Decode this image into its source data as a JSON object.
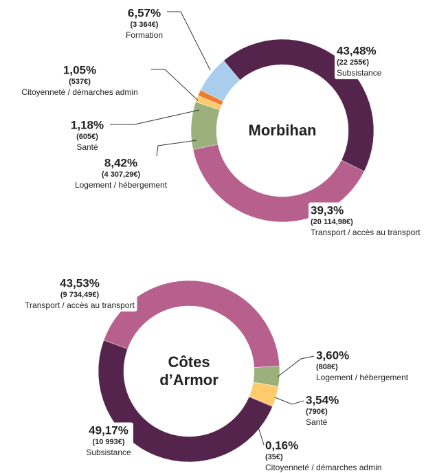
{
  "chart_data": [
    {
      "type": "pie",
      "title": "Morbihan",
      "categories": [
        "Subsistance",
        "Transport / accès au transport",
        "Logement / hébergement",
        "Santé",
        "Citoyenneté / démarches admin",
        "Formation"
      ],
      "values": [
        43.48,
        39.3,
        8.42,
        1.18,
        1.05,
        6.57
      ],
      "value_labels": [
        "43,48%",
        "39,3%",
        "8,42%",
        "1,18%",
        "1,05%",
        "6,57%"
      ],
      "amount_labels": [
        "(22 255€)",
        "(20 114,98€)",
        "(4 307,29€)",
        "(605€)",
        "(537€)",
        "(3 364€)"
      ],
      "colors": [
        "#55244c",
        "#b7608e",
        "#9bb07a",
        "#fdca6c",
        "#ee7c2e",
        "#a9cdec"
      ]
    },
    {
      "type": "pie",
      "title": "Côtes d’Armor",
      "categories": [
        "Transport / accès au transport",
        "Logement / hébergement",
        "Santé",
        "Citoyenneté / démarches admin",
        "Subsistance"
      ],
      "values": [
        43.53,
        3.6,
        3.54,
        0.16,
        49.17
      ],
      "value_labels": [
        "43,53%",
        "3,60%",
        "3,54%",
        "0,16%",
        "49,17%"
      ],
      "amount_labels": [
        "(9 734,49€)",
        "(808€)",
        "(790€)",
        "(35€)",
        "(10 993€)"
      ],
      "colors": [
        "#b7608e",
        "#9bb07a",
        "#fdca6c",
        "#ee7c2e",
        "#55244c"
      ]
    }
  ]
}
